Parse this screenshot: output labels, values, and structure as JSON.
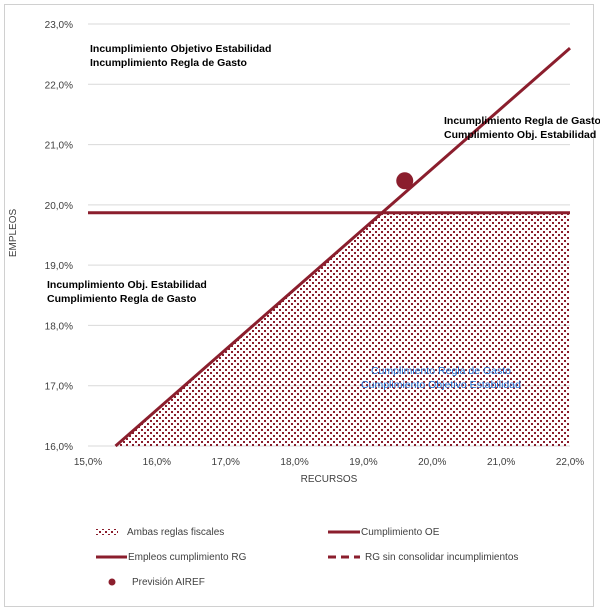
{
  "colors": {
    "series": "#8b1e2d",
    "grid": "#d9d9d9",
    "blue_text": "#1f6fd0"
  },
  "regions": {
    "top_left_1": "Incumplimiento Objetivo Estabilidad",
    "top_left_2": "Incumplimiento Regla de Gasto",
    "right_1": "Incumplimiento Regla de Gasto",
    "right_2": "Cumplimiento Obj. Estabilidad",
    "mid_left_1": "Incumplimiento Obj. Estabilidad",
    "mid_left_2": "Cumplimiento Regla de Gasto",
    "bottom_1": "Cumplimiento Regla de Gasto",
    "bottom_2": "Cumplimiento Objetivo Estabilidad"
  },
  "legend": {
    "ambas": "Ambas reglas fiscales",
    "cumplimiento_oe": "Cumplimiento OE",
    "empleos_rg": "Empleos cumplimiento RG",
    "rg_sin": "RG sin consolidar incumplimientos",
    "prevision": "Previsión AIREF"
  },
  "chart_data": {
    "type": "line",
    "xlabel": "RECURSOS",
    "ylabel": "EMPLEOS",
    "xlim": [
      15.0,
      22.0
    ],
    "ylim": [
      16.0,
      23.0
    ],
    "x_ticks": [
      "15,0%",
      "16,0%",
      "17,0%",
      "18,0%",
      "19,0%",
      "20,0%",
      "21,0%",
      "22,0%"
    ],
    "y_ticks": [
      "16,0%",
      "17,0%",
      "18,0%",
      "19,0%",
      "20,0%",
      "21,0%",
      "22,0%",
      "23,0%"
    ],
    "gridlines": "horizontal",
    "series": [
      {
        "name": "Cumplimiento OE",
        "style": "solid",
        "x": [
          15.4,
          22.0
        ],
        "y": [
          16.0,
          22.6
        ]
      },
      {
        "name": "Empleos cumplimiento RG",
        "style": "solid",
        "x": [
          15.0,
          22.0
        ],
        "y": [
          19.87,
          19.87
        ]
      },
      {
        "name": "RG sin consolidar incumplimientos",
        "style": "dashed",
        "x": [],
        "y": []
      },
      {
        "name": "Previsión AIREF",
        "style": "point",
        "x": [
          19.6
        ],
        "y": [
          20.4
        ]
      }
    ],
    "shaded_region": {
      "name": "Ambas reglas fiscales",
      "polygon": [
        [
          15.4,
          16.0
        ],
        [
          22.0,
          16.0
        ],
        [
          22.0,
          19.87
        ],
        [
          19.27,
          19.87
        ]
      ]
    }
  }
}
